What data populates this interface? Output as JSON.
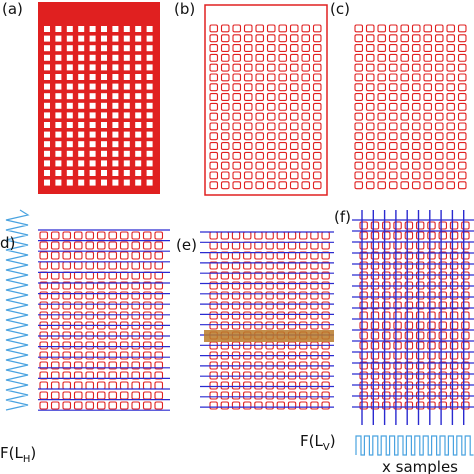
{
  "panels": {
    "a": "(a)",
    "b": "(b)",
    "c": "(c)",
    "d": "d)",
    "e": "(e)",
    "f": "(f)"
  },
  "axis_labels": {
    "horizontal": {
      "prefix": "F(L",
      "sub": "H",
      "suffix": ")"
    },
    "vertical": {
      "prefix": "F(L",
      "sub": "V",
      "suffix": ")"
    },
    "samples": "x samples"
  }
}
